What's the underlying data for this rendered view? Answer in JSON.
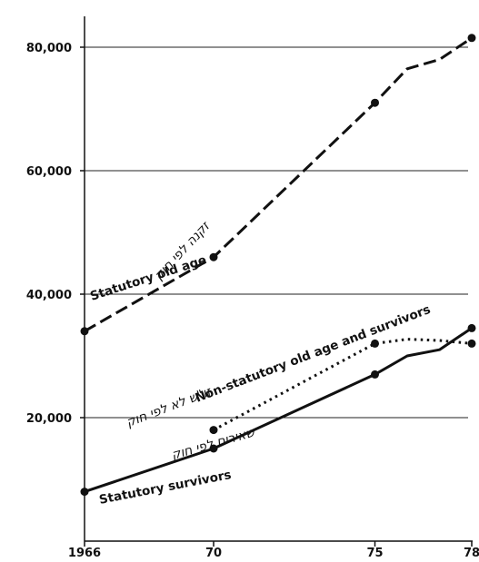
{
  "chart_data": {
    "type": "line",
    "title": "",
    "xlabel": "",
    "ylabel": "",
    "xlim": [
      1966,
      1978
    ],
    "ylim": [
      0,
      85000
    ],
    "grid": "horizontal",
    "x_tick_labels": [
      {
        "x": 1966,
        "label": "1966"
      },
      {
        "x": 1970,
        "label": "70"
      },
      {
        "x": 1975,
        "label": "75"
      },
      {
        "x": 1978,
        "label": "78"
      }
    ],
    "y_tick_labels": [
      {
        "y": 20000,
        "label": "20,000"
      },
      {
        "y": 40000,
        "label": "40,000"
      },
      {
        "y": 60000,
        "label": "60,000"
      },
      {
        "y": 80000,
        "label": "80,000"
      }
    ],
    "series": [
      {
        "name": "Statutory old age",
        "name_he": "זקנה לפי חוק",
        "style": "dashed",
        "x": [
          1966,
          1970,
          1975,
          1976,
          1977,
          1978
        ],
        "y": [
          34000,
          46000,
          71000,
          76500,
          78000,
          81500
        ],
        "markers": [
          1966,
          1970,
          1975,
          1978
        ]
      },
      {
        "name": "Non-statutory old age and survivors",
        "name_he": "זו\"ש לא לפי חוק",
        "style": "dotted",
        "x": [
          1970,
          1975,
          1976,
          1977,
          1978
        ],
        "y": [
          18000,
          32000,
          32700,
          32500,
          32000
        ],
        "markers": [
          1970,
          1975,
          1978
        ]
      },
      {
        "name": "Statutory survivors",
        "name_he": "שאירים לפי חוק",
        "style": "solid",
        "x": [
          1966,
          1970,
          1975,
          1976,
          1977,
          1978
        ],
        "y": [
          8000,
          15000,
          27000,
          30000,
          31000,
          34500
        ],
        "markers": [
          1966,
          1970,
          1975,
          1978
        ]
      }
    ]
  }
}
